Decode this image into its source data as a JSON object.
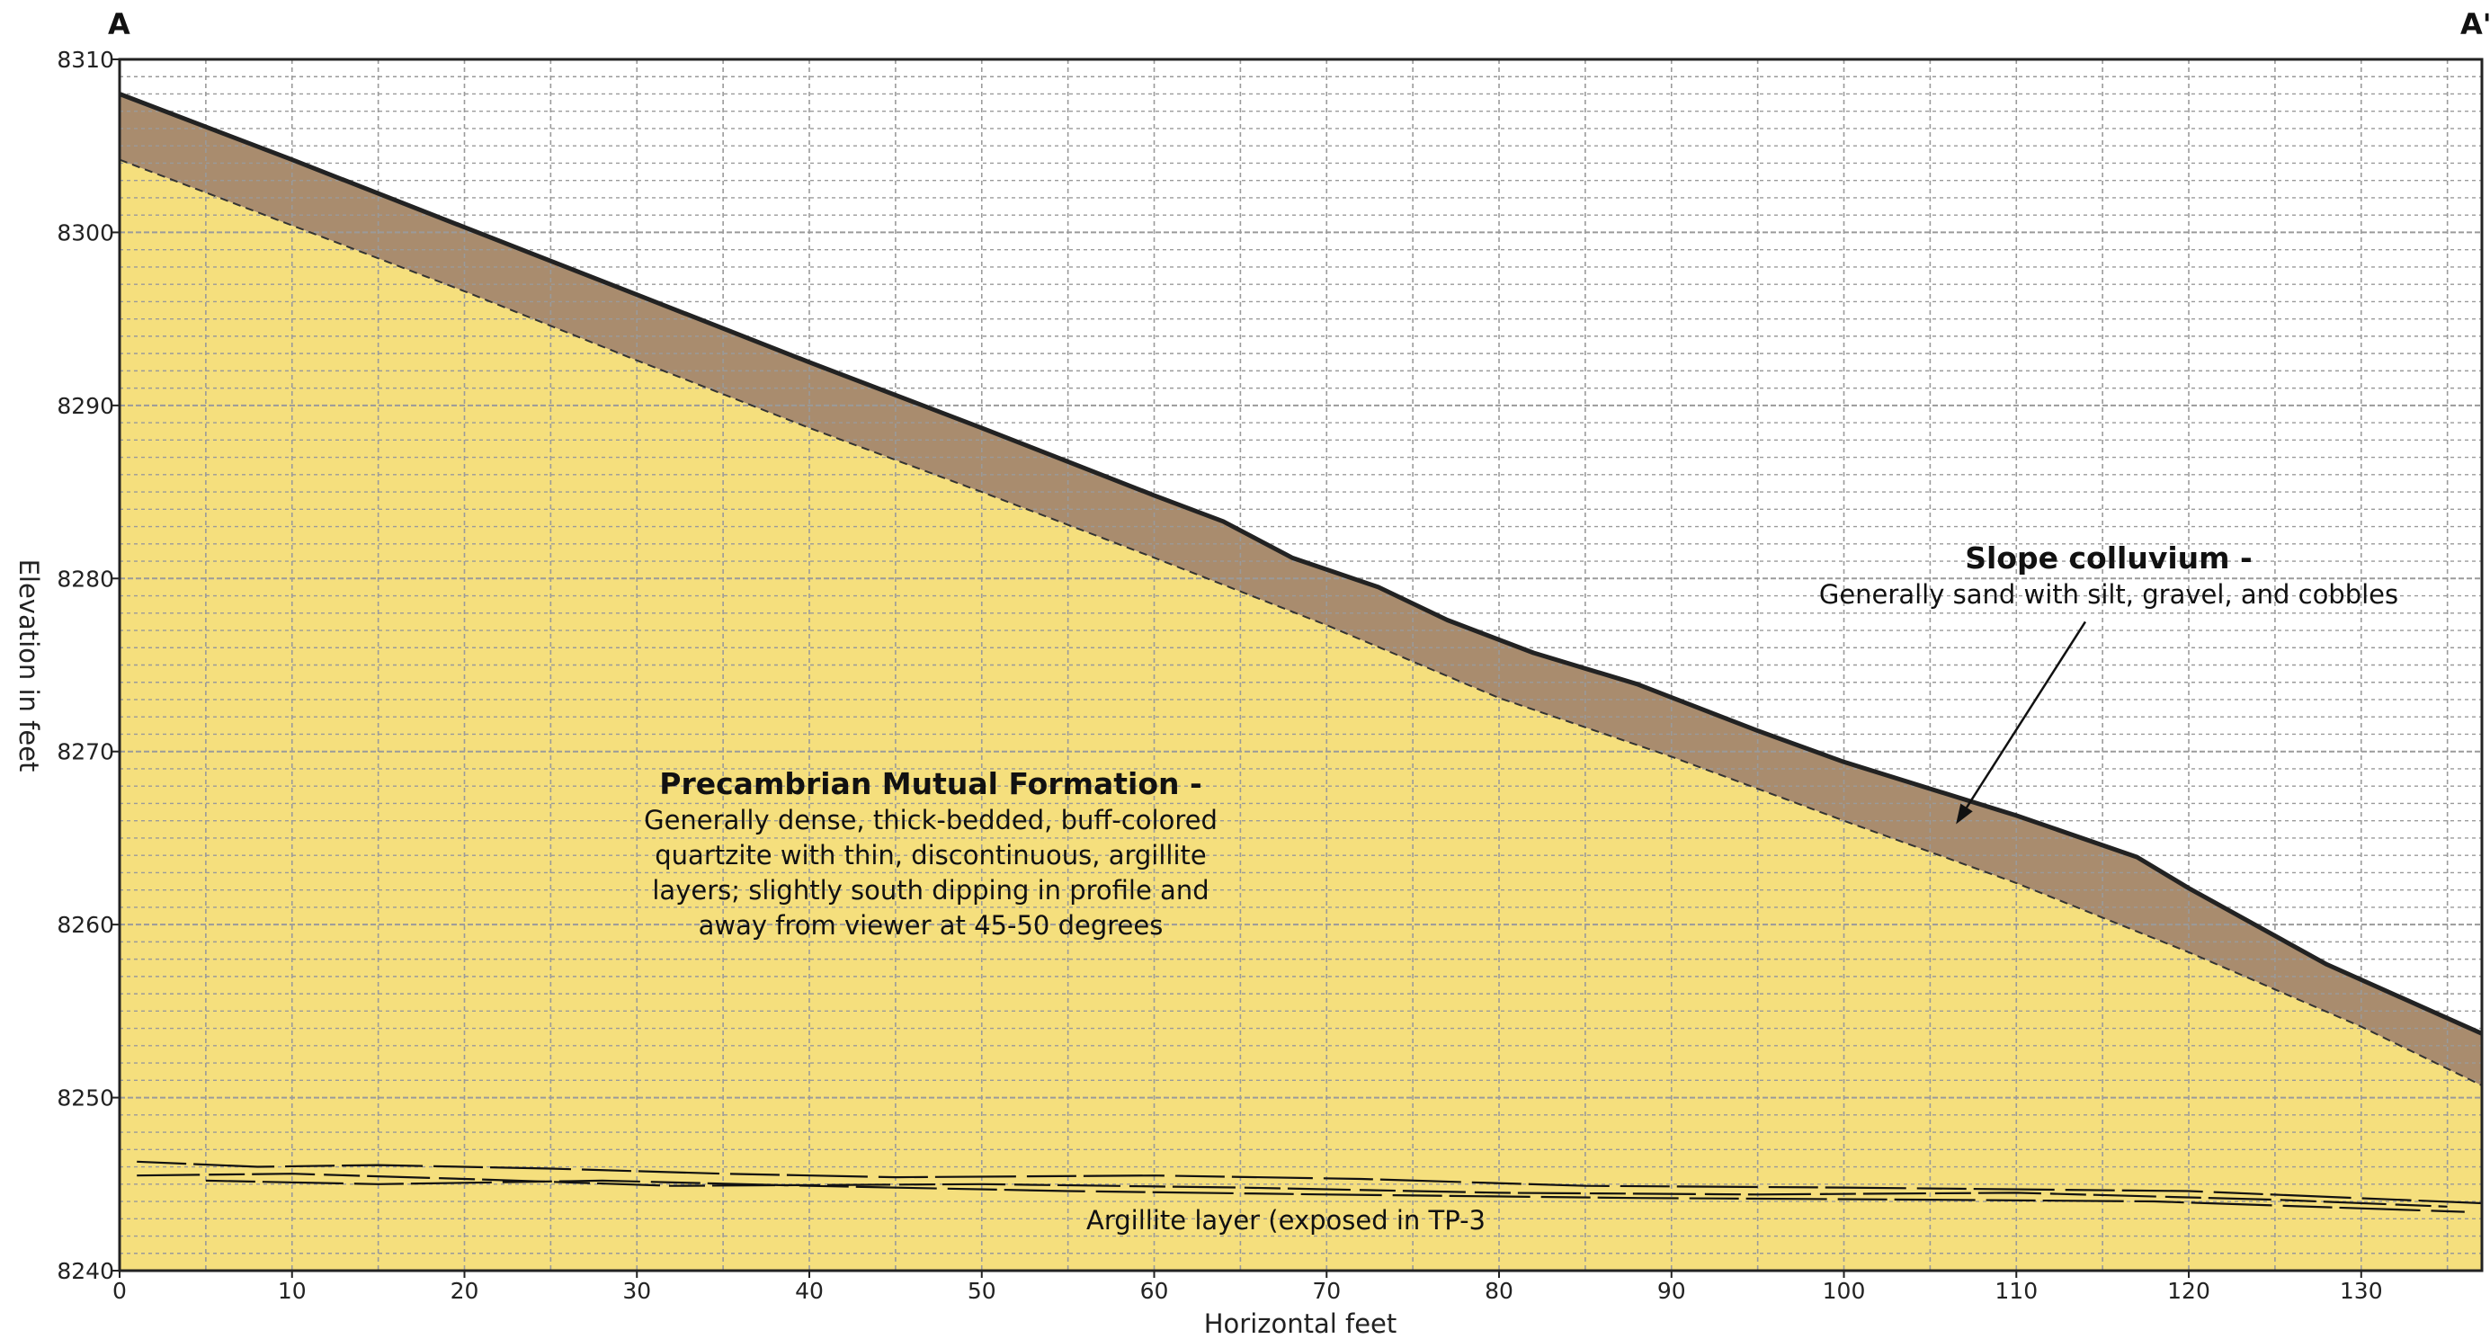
{
  "section": {
    "left_label": "A",
    "right_label": "A'",
    "xlabel": "Horizontal feet",
    "ylabel": "Elevation in feet",
    "xlim": [
      0,
      137
    ],
    "ylim": [
      8240,
      8310
    ],
    "x_ticks": [
      "0",
      "10",
      "20",
      "30",
      "40",
      "50",
      "60",
      "70",
      "80",
      "90",
      "100",
      "110",
      "120",
      "130"
    ],
    "y_ticks": [
      "8310",
      "8300",
      "8290",
      "8280",
      "8270",
      "8260",
      "8250",
      "8240"
    ],
    "grid": true
  },
  "chart_data": {
    "type": "area",
    "ground_surface": {
      "x": [
        0,
        10,
        20,
        30,
        40,
        50,
        60,
        64,
        68,
        73,
        77,
        82,
        88,
        95,
        100,
        110,
        117,
        120,
        128,
        137
      ],
      "y": [
        8308,
        8304.2,
        8300.3,
        8296.4,
        8292.5,
        8288.7,
        8284.8,
        8283.3,
        8281.2,
        8279.5,
        8277.6,
        8275.7,
        8273.9,
        8271.2,
        8269.4,
        8266.3,
        8263.9,
        8262.1,
        8257.7,
        8253.7
      ]
    },
    "colluvium_base": {
      "x": [
        0,
        10,
        20,
        30,
        40,
        50,
        60,
        70,
        80,
        90,
        100,
        110,
        120,
        130,
        137
      ],
      "y": [
        8304.2,
        8300.4,
        8296.6,
        8292.6,
        8288.7,
        8285,
        8281.2,
        8277.3,
        8273.1,
        8269.7,
        8266,
        8262.4,
        8258.4,
        8254.1,
        8250.7
      ]
    },
    "argillite_lines": [
      {
        "x": [
          1,
          8,
          15,
          25,
          35,
          45,
          60,
          72,
          85,
          100,
          120,
          137
        ],
        "y": [
          8246.3,
          8246,
          8246.1,
          8245.9,
          8245.6,
          8245.4,
          8245.5,
          8245.3,
          8244.9,
          8244.8,
          8244.6,
          8243.9
        ]
      },
      {
        "x": [
          1,
          10,
          20,
          32,
          50,
          65,
          80,
          95,
          110,
          125,
          135
        ],
        "y": [
          8245.5,
          8245.6,
          8245.3,
          8244.9,
          8245,
          8244.8,
          8244.5,
          8244.4,
          8244.5,
          8244.1,
          8243.7
        ]
      },
      {
        "x": [
          5,
          15,
          28,
          40,
          55,
          70,
          88,
          105,
          118,
          136
        ],
        "y": [
          8245.2,
          8245,
          8245.2,
          8244.9,
          8244.6,
          8244.4,
          8244.2,
          8244.1,
          8244,
          8243.4
        ]
      }
    ],
    "colluvium_arrow": {
      "from": [
        114,
        8277.5
      ],
      "to": [
        106.5,
        8265.8
      ]
    }
  },
  "annotations": {
    "mutual_title": "Precambrian Mutual Formation -",
    "mutual_lines": [
      "Generally dense, thick-bedded, buff-colored",
      "quartzite with thin, discontinuous, argillite",
      "layers; slightly south dipping in profile and",
      "away from viewer at 45-50 degrees"
    ],
    "colluvium_title": "Slope colluvium -",
    "colluvium_body": "Generally sand with silt, gravel, and cobbles",
    "argillite_label": "Argillite layer (exposed in TP-3"
  },
  "colors": {
    "bedrock": "#f5df7d",
    "colluvium": "#a98c6e",
    "grid": "#9a9a9a",
    "outline": "#222222"
  }
}
